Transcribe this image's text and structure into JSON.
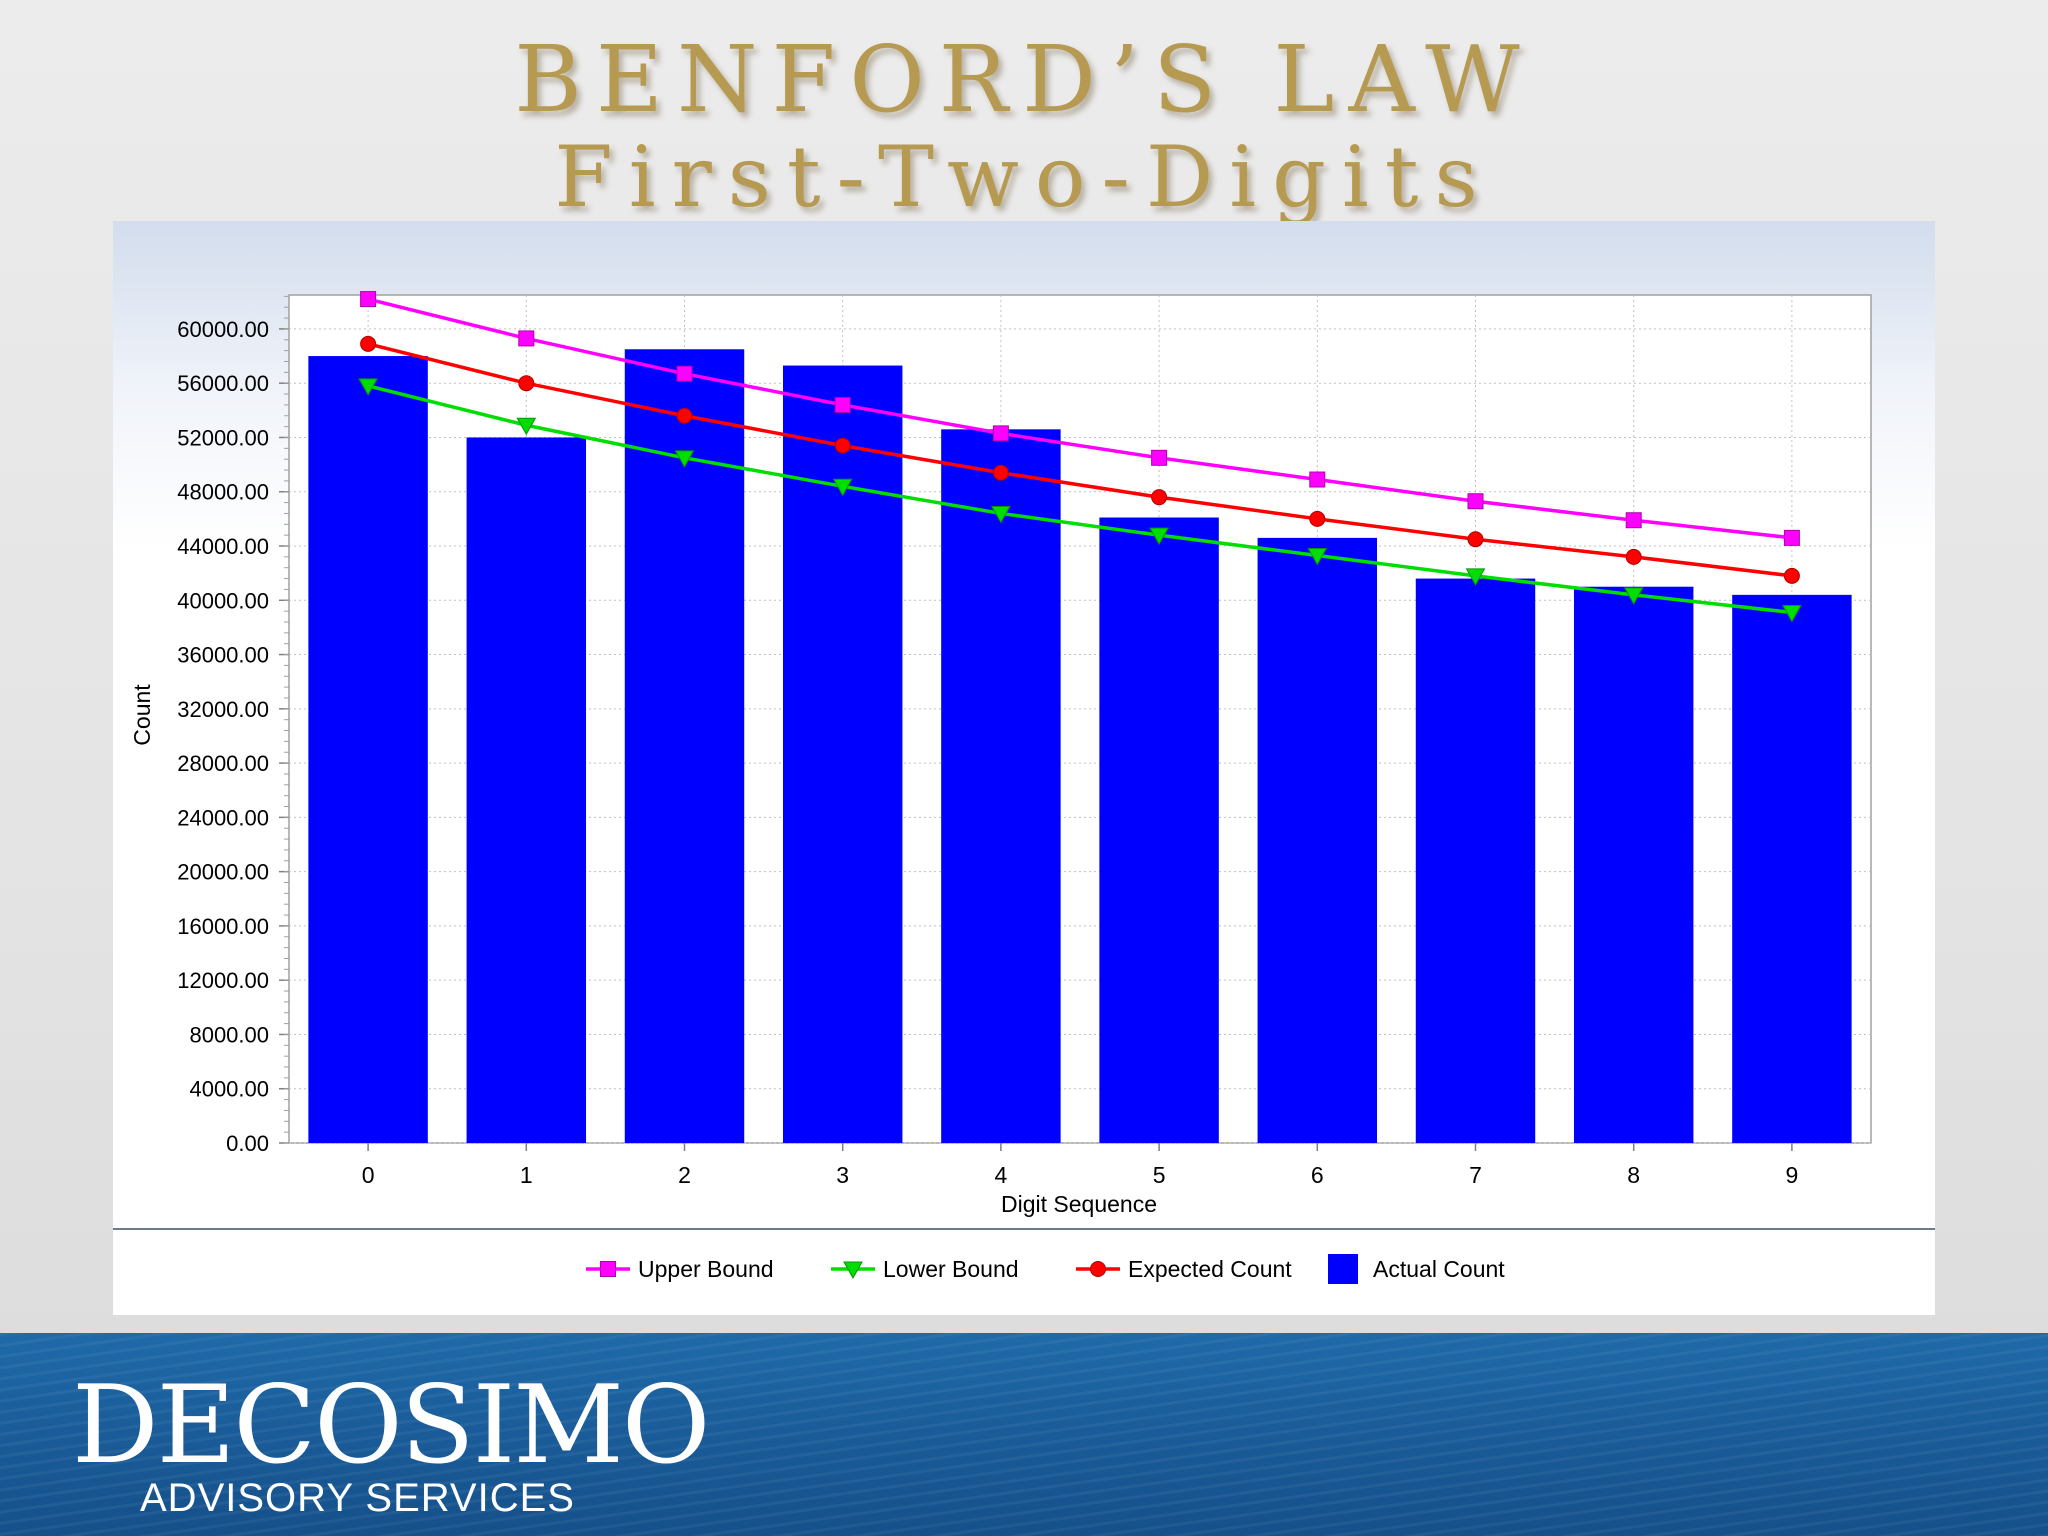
{
  "slide": {
    "title_line1": "BENFORD’S LAW",
    "title_line2": "First-Two-Digits"
  },
  "footer": {
    "brand": "DECOSIMO",
    "tagline": "ADVISORY SERVICES"
  },
  "colors": {
    "upper": "#ff00ff",
    "lower": "#00dd00",
    "expected": "#ff0000",
    "actual": "#0000ff"
  },
  "chart_data": {
    "type": "bar",
    "xlabel": "Digit Sequence",
    "ylabel": "Count",
    "categories": [
      "0",
      "1",
      "2",
      "3",
      "4",
      "5",
      "6",
      "7",
      "8",
      "9"
    ],
    "ylim": [
      0,
      62500
    ],
    "yticks": [
      "0.00",
      "4000.00",
      "8000.00",
      "12000.00",
      "16000.00",
      "20000.00",
      "24000.00",
      "28000.00",
      "32000.00",
      "36000.00",
      "40000.00",
      "44000.00",
      "48000.00",
      "52000.00",
      "56000.00",
      "60000.00"
    ],
    "grid": true,
    "legend_position": "bottom",
    "series": [
      {
        "name": "Upper Bound",
        "type": "line",
        "marker": "square",
        "values": [
          62200,
          59300,
          56700,
          54400,
          52300,
          50500,
          48900,
          47300,
          45900,
          44600
        ]
      },
      {
        "name": "Lower Bound",
        "type": "line",
        "marker": "triangle-down",
        "values": [
          55800,
          52900,
          50500,
          48400,
          46400,
          44800,
          43300,
          41800,
          40400,
          39100
        ]
      },
      {
        "name": "Expected Count",
        "type": "line",
        "marker": "circle",
        "values": [
          58900,
          56000,
          53600,
          51400,
          49400,
          47600,
          46000,
          44500,
          43200,
          41800
        ]
      },
      {
        "name": "Actual Count",
        "type": "bar",
        "marker": "square-block",
        "values": [
          58000,
          52000,
          58500,
          57300,
          52600,
          46100,
          44600,
          41600,
          41000,
          40400
        ]
      }
    ]
  }
}
